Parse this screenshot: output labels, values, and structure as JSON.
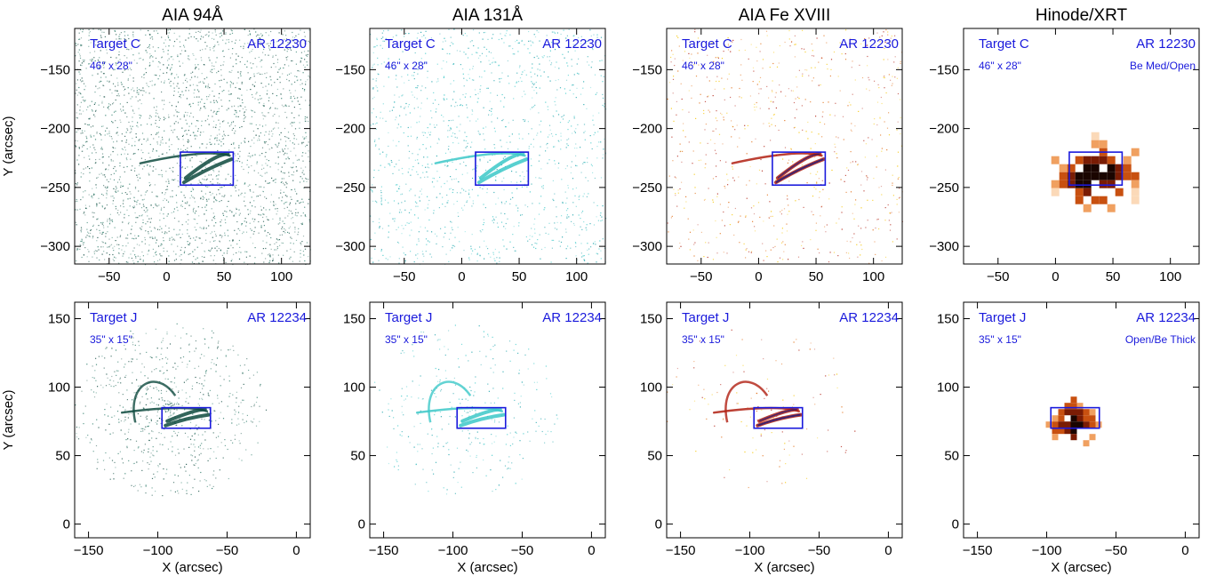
{
  "columns": [
    {
      "title": "AIA 94Å",
      "colormap": "aia94",
      "base_color": "#1f6a5a"
    },
    {
      "title": "AIA 131Å",
      "colormap": "aia131",
      "base_color": "#19b5b5"
    },
    {
      "title": "AIA Fe XVIII",
      "colormap": "fe18",
      "base_color": "#c0361a"
    },
    {
      "title": "Hinode/XRT",
      "colormap": "xrt",
      "base_color": "#8a2a08"
    }
  ],
  "rows": [
    {
      "target": "Target C",
      "region": "AR 12230",
      "size": "46\" x 28\"",
      "xrt_filter": "Be Med/Open",
      "xlim": [
        -80,
        125
      ],
      "ylim": [
        -315,
        -115
      ],
      "xticks": [
        -50,
        0,
        50,
        100
      ],
      "yticks": [
        -300,
        -250,
        -200,
        -150
      ],
      "box_x": [
        12,
        58
      ],
      "box_y": [
        -248,
        -220
      ],
      "xlabel": "",
      "ylabel": "Y (arcsec)"
    },
    {
      "target": "Target J",
      "region": "AR 12234",
      "size": "35\" x 15\"",
      "xrt_filter": "Open/Be Thick",
      "xlim": [
        -160,
        10
      ],
      "ylim": [
        -10,
        162
      ],
      "xticks": [
        -150,
        -100,
        -50,
        0
      ],
      "yticks": [
        0,
        50,
        100,
        150
      ],
      "box_x": [
        -97,
        -62
      ],
      "box_y": [
        70,
        85
      ],
      "xlabel": "X (arcsec)",
      "ylabel": "Y (arcsec)"
    }
  ],
  "colors": {
    "annotation": "#1a1adc",
    "box": "#1a1adc",
    "axis": "#000000"
  }
}
